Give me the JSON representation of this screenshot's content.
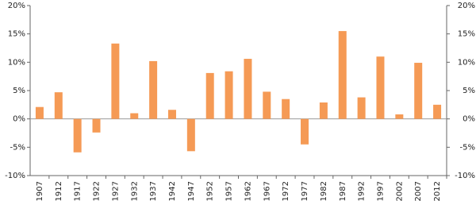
{
  "chart_data": {
    "type": "bar",
    "categories": [
      "1907",
      "1912",
      "1917",
      "1922",
      "1927",
      "1932",
      "1937",
      "1942",
      "1947",
      "1952",
      "1957",
      "1962",
      "1967",
      "1972",
      "1977",
      "1982",
      "1987",
      "1992",
      "1997",
      "2002",
      "2007",
      "2012"
    ],
    "values": [
      2.1,
      4.7,
      -5.9,
      -2.4,
      13.3,
      1.0,
      10.2,
      1.6,
      -5.7,
      8.1,
      8.4,
      10.6,
      4.8,
      3.5,
      -4.5,
      2.9,
      15.5,
      3.8,
      11.0,
      0.8,
      9.9,
      2.5
    ],
    "color": "#f59a55",
    "ylim": [
      -10,
      20
    ],
    "yticks": [
      {
        "value": -10,
        "label": "-10%"
      },
      {
        "value": -5,
        "label": "-5%"
      },
      {
        "value": 0,
        "label": "0%"
      },
      {
        "value": 5,
        "label": "5%"
      },
      {
        "value": 10,
        "label": "10%"
      },
      {
        "value": 15,
        "label": "15%"
      },
      {
        "value": 20,
        "label": "20%"
      }
    ],
    "y2lim": [
      -10,
      20
    ],
    "y2ticks": [
      {
        "value": -10,
        "label": "-10%"
      },
      {
        "value": -5,
        "label": "-5%"
      },
      {
        "value": 0,
        "label": "0%"
      },
      {
        "value": 5,
        "label": "5%"
      },
      {
        "value": 10,
        "label": "10%"
      },
      {
        "value": 15,
        "label": "15%"
      },
      {
        "value": 20,
        "label": "20%"
      }
    ],
    "grid": false
  }
}
